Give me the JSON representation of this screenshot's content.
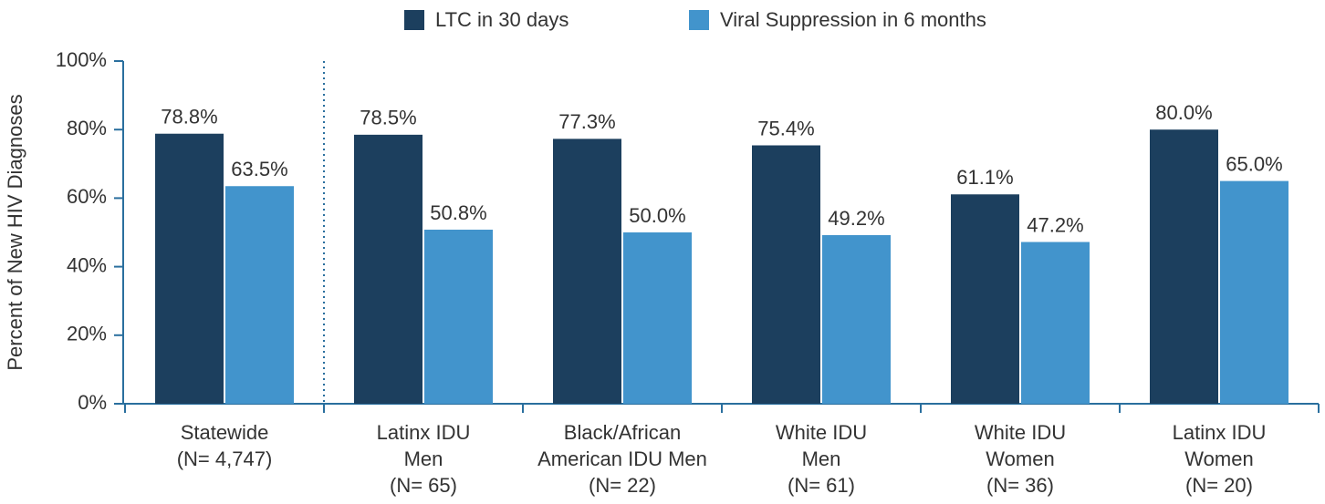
{
  "chart_data": {
    "type": "bar",
    "y_label": "Percent of New HIV Diagnoses",
    "categories": [
      [
        "Statewide",
        "(N= 4,747)"
      ],
      [
        "Latinx IDU",
        "Men",
        "(N= 65)"
      ],
      [
        "Black/African",
        "American IDU Men",
        "(N= 22)"
      ],
      [
        "White IDU",
        "Men",
        "(N= 61)"
      ],
      [
        "White IDU",
        "Women",
        "(N= 36)"
      ],
      [
        "Latinx IDU",
        "Women",
        "(N= 20)"
      ]
    ],
    "series": [
      {
        "name": "LTC in 30 days",
        "color": "#1c3f5e",
        "values": [
          78.8,
          78.5,
          77.3,
          75.4,
          61.1,
          80.0
        ],
        "value_labels": [
          "78.8%",
          "78.5%",
          "77.3%",
          "75.4%",
          "61.1%",
          "80.0%"
        ]
      },
      {
        "name": "Viral Suppression in 6 months",
        "color": "#4294cc",
        "values": [
          63.5,
          50.8,
          50.0,
          49.2,
          47.2,
          65.0
        ],
        "value_labels": [
          "63.5%",
          "50.8%",
          "50.0%",
          "49.2%",
          "47.2%",
          "65.0%"
        ]
      }
    ],
    "ylim": [
      0,
      100
    ],
    "yticks": [
      {
        "value": 0,
        "label": "0%"
      },
      {
        "value": 20,
        "label": "20%"
      },
      {
        "value": 40,
        "label": "40%"
      },
      {
        "value": 60,
        "label": "60%"
      },
      {
        "value": 80,
        "label": "80%"
      },
      {
        "value": 100,
        "label": "100%"
      }
    ],
    "legend": "top"
  }
}
